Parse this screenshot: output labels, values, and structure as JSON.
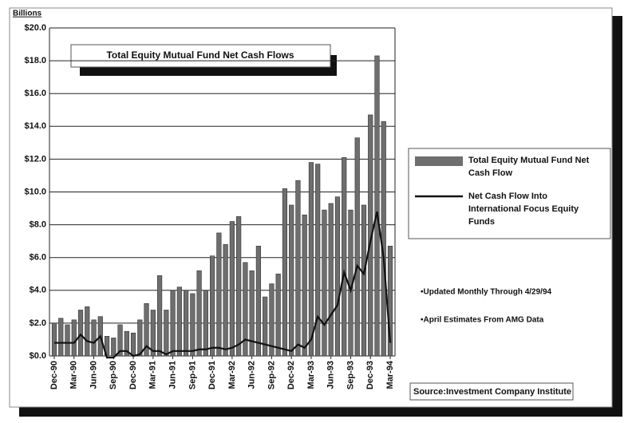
{
  "chart_data": {
    "type": "bar",
    "title": "Total Equity Mutual Fund Net Cash Flows",
    "y_label": "Billions",
    "categories": [
      "Dec-90",
      null,
      null,
      "Mar-90",
      null,
      null,
      "Jun-90",
      null,
      null,
      "Sep-90",
      null,
      null,
      "Dec-90",
      null,
      null,
      "Mar-91",
      null,
      null,
      "Jun-91",
      null,
      null,
      "Sep-91",
      null,
      null,
      "Dec-91",
      null,
      null,
      "Mar-92",
      null,
      null,
      "Jun-92",
      null,
      null,
      "Sep-92",
      null,
      null,
      "Dec-92",
      null,
      null,
      "Mar-93",
      null,
      null,
      "Jun-93",
      null,
      null,
      "Sep-93",
      null,
      null,
      "Dec-93",
      null,
      null,
      "Mar-94"
    ],
    "series": [
      {
        "name": "Total Equity Mutual Fund Net Cash Flow",
        "type": "bar",
        "color": "#6e6e6e",
        "values": [
          2.0,
          2.3,
          1.9,
          2.2,
          2.8,
          3.0,
          2.2,
          2.4,
          1.2,
          1.1,
          1.9,
          1.5,
          1.4,
          2.2,
          3.2,
          2.8,
          4.9,
          2.8,
          4.0,
          4.2,
          4.0,
          3.8,
          5.2,
          4.0,
          6.1,
          7.5,
          6.8,
          8.2,
          8.5,
          5.7,
          5.2,
          6.7,
          3.6,
          4.4,
          5.0,
          10.2,
          9.2,
          10.7,
          8.6,
          11.8,
          11.7,
          8.9,
          9.3,
          9.7,
          12.1,
          8.9,
          13.3,
          9.2,
          14.7,
          18.3,
          14.3,
          6.7
        ]
      },
      {
        "name": "Net Cash Flow Into International Focus Equity Funds",
        "type": "line",
        "color": "#111111",
        "values": [
          0.8,
          0.8,
          0.8,
          0.8,
          1.3,
          0.9,
          0.8,
          1.2,
          -0.1,
          -0.1,
          0.3,
          0.3,
          0.0,
          0.1,
          0.6,
          0.3,
          0.3,
          0.1,
          0.3,
          0.3,
          0.3,
          0.3,
          0.4,
          0.4,
          0.5,
          0.5,
          0.4,
          0.5,
          0.7,
          1.0,
          0.9,
          0.8,
          0.7,
          0.6,
          0.5,
          0.4,
          0.3,
          0.7,
          0.5,
          1.0,
          2.4,
          1.9,
          2.5,
          3.1,
          5.1,
          4.0,
          5.5,
          5.0,
          7.0,
          8.8,
          6.0,
          0.8
        ]
      }
    ],
    "ylim": [
      0,
      20
    ],
    "yticks": [
      {
        "value": 0,
        "label": "$0.0"
      },
      {
        "value": 2,
        "label": "$2.0"
      },
      {
        "value": 4,
        "label": "$4.0"
      },
      {
        "value": 6,
        "label": "$6.0"
      },
      {
        "value": 8,
        "label": "$8.0"
      },
      {
        "value": 10,
        "label": "$10.0"
      },
      {
        "value": 12,
        "label": "$12.0"
      },
      {
        "value": 14,
        "label": "$14.0"
      },
      {
        "value": 16,
        "label": "$16.0"
      },
      {
        "value": 18,
        "label": "$18.0"
      },
      {
        "value": 20,
        "label": "$20.0"
      }
    ],
    "grid": true,
    "annotations": [
      "•Updated Monthly Through 4/29/94",
      "•April Estimates From AMG Data"
    ],
    "source": "Source:Investment Company Institute"
  }
}
